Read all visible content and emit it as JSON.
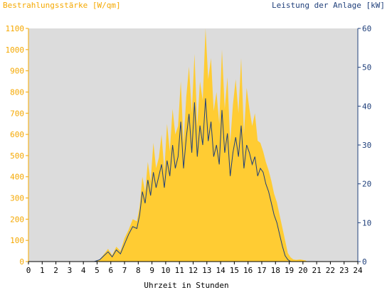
{
  "chart_data": {
    "type": "area",
    "left_axis_title": "Bestrahlungsstärke [W/qm]",
    "right_axis_title": "Leistung der Anlage [kW]",
    "xlabel": "Uhrzeit in Stunden",
    "xlim": [
      0,
      24
    ],
    "x_ticks": [
      "0",
      "1",
      "2",
      "3",
      "4",
      "5",
      "6",
      "7",
      "8",
      "9",
      "10",
      "11",
      "12",
      "13",
      "14",
      "15",
      "16",
      "17",
      "18",
      "19",
      "20",
      "21",
      "22",
      "23",
      "24"
    ],
    "ylim_left": [
      0,
      1100
    ],
    "ylim_right": [
      0,
      60
    ],
    "left_ticks": [
      "0",
      "100",
      "200",
      "300",
      "400",
      "500",
      "600",
      "700",
      "800",
      "900",
      "1000",
      "1100"
    ],
    "right_ticks": [
      "0",
      "10",
      "20",
      "30",
      "40",
      "50",
      "60"
    ],
    "grid": false,
    "colors": {
      "plot_background": "#dcdcdc",
      "irradiance_fill": "#ffcc33",
      "left_axis": "#f5a800",
      "right_axis": "#1f3f7a",
      "power_line": "#1f3f7a"
    },
    "series": [
      {
        "name": "",
        "axis": "left",
        "style": "area",
        "x": [
          0,
          4.8,
          5.2,
          5.5,
          5.8,
          6.1,
          6.4,
          6.7,
          7.0,
          7.3,
          7.6,
          7.9,
          8.1,
          8.3,
          8.5,
          8.7,
          8.9,
          9.1,
          9.3,
          9.5,
          9.7,
          9.9,
          10.1,
          10.3,
          10.5,
          10.7,
          10.9,
          11.1,
          11.3,
          11.5,
          11.7,
          11.9,
          12.1,
          12.3,
          12.5,
          12.7,
          12.9,
          13.1,
          13.3,
          13.5,
          13.7,
          13.9,
          14.1,
          14.3,
          14.5,
          14.7,
          14.9,
          15.1,
          15.3,
          15.5,
          15.7,
          15.9,
          16.1,
          16.3,
          16.5,
          16.7,
          16.9,
          17.1,
          17.3,
          17.5,
          17.7,
          17.9,
          18.1,
          18.3,
          18.5,
          18.7,
          18.9,
          19.1,
          19.3,
          19.5,
          19.8,
          20.2,
          20.3,
          24
        ],
        "values": [
          0,
          0,
          10,
          35,
          60,
          30,
          70,
          50,
          110,
          150,
          200,
          190,
          260,
          400,
          330,
          470,
          380,
          560,
          440,
          490,
          600,
          430,
          650,
          520,
          720,
          600,
          640,
          850,
          560,
          780,
          920,
          700,
          980,
          640,
          850,
          760,
          1100,
          860,
          960,
          710,
          800,
          650,
          1000,
          720,
          870,
          560,
          740,
          860,
          700,
          960,
          600,
          820,
          720,
          640,
          700,
          570,
          560,
          520,
          470,
          430,
          380,
          320,
          280,
          220,
          160,
          100,
          40,
          20,
          10,
          8,
          10,
          5,
          0,
          0
        ]
      },
      {
        "name": "",
        "axis": "right",
        "style": "line",
        "x": [
          0,
          4.8,
          5.2,
          5.5,
          5.8,
          6.1,
          6.4,
          6.7,
          7.0,
          7.3,
          7.6,
          7.9,
          8.1,
          8.3,
          8.5,
          8.7,
          8.9,
          9.1,
          9.3,
          9.5,
          9.7,
          9.9,
          10.1,
          10.3,
          10.5,
          10.7,
          10.9,
          11.1,
          11.3,
          11.5,
          11.7,
          11.9,
          12.1,
          12.3,
          12.5,
          12.7,
          12.9,
          13.1,
          13.3,
          13.5,
          13.7,
          13.9,
          14.1,
          14.3,
          14.5,
          14.7,
          14.9,
          15.1,
          15.3,
          15.5,
          15.7,
          15.9,
          16.1,
          16.3,
          16.5,
          16.7,
          16.9,
          17.1,
          17.3,
          17.5,
          17.7,
          17.9,
          18.1,
          18.3,
          18.5,
          18.7,
          18.9,
          19.1,
          19.3,
          19.5,
          19.8,
          20.2,
          20.3,
          24
        ],
        "values": [
          0,
          0,
          0.5,
          1.5,
          2.5,
          1.2,
          3,
          2,
          4.5,
          7,
          9,
          8.5,
          12,
          18,
          15,
          21,
          17,
          23,
          19,
          22,
          25,
          19,
          26,
          22,
          30,
          24,
          27,
          36,
          24,
          32,
          38,
          28,
          41,
          27,
          35,
          30,
          42,
          31,
          36,
          27,
          30,
          25,
          39,
          28,
          33,
          22,
          28,
          32,
          27,
          35,
          24,
          30,
          28,
          25,
          27,
          22,
          24,
          23,
          20,
          18,
          15,
          12,
          10,
          7,
          4,
          1.5,
          0.5,
          0,
          0,
          0,
          0,
          0,
          0,
          0
        ]
      }
    ]
  }
}
